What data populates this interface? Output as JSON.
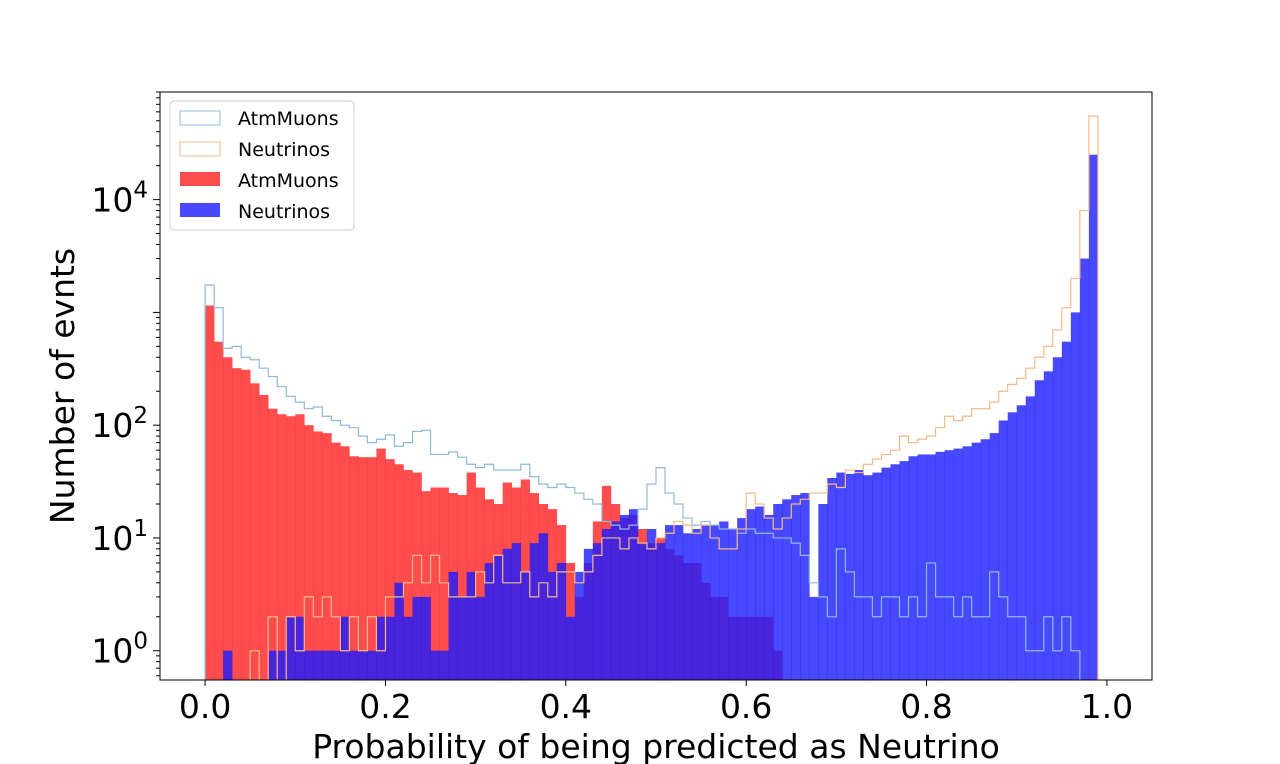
{
  "chart_data": {
    "type": "histogram",
    "xlabel": "Probability of being predicted as Neutrino",
    "ylabel": "Number of evnts",
    "xlim": [
      -0.05,
      1.05
    ],
    "ylim": [
      0.55,
      90000
    ],
    "yscale": "log",
    "x_ticks": [
      "0.0",
      "0.2",
      "0.4",
      "0.6",
      "0.8",
      "1.0"
    ],
    "y_ticks": [
      {
        "base": "10",
        "exp": "0"
      },
      {
        "base": "10",
        "exp": "1"
      },
      {
        "base": "10",
        "exp": "2"
      },
      {
        "base": "10",
        "exp": "4"
      }
    ],
    "legend_position": "upper-left",
    "bins": 100,
    "bin_range": [
      0,
      1
    ],
    "series": [
      {
        "name": "AtmMuons",
        "style": "step",
        "color": "#8fb8d8",
        "values": [
          1750,
          1100,
          480,
          500,
          400,
          380,
          320,
          270,
          220,
          180,
          160,
          140,
          145,
          120,
          110,
          100,
          95,
          80,
          70,
          75,
          82,
          65,
          70,
          88,
          90,
          55,
          55,
          58,
          52,
          45,
          42,
          45,
          40,
          40,
          40,
          45,
          35,
          30,
          28,
          30,
          28,
          25,
          22,
          20,
          14,
          13,
          12,
          13,
          18,
          30,
          42,
          25,
          20,
          15,
          13,
          14,
          13,
          12,
          12,
          11,
          12,
          11,
          11,
          10,
          10,
          9,
          7,
          4,
          3,
          2,
          8,
          5,
          3,
          3,
          2,
          3,
          3,
          2,
          3,
          2,
          6,
          3,
          3,
          2,
          3,
          2,
          2,
          5,
          3,
          2,
          2,
          1,
          1,
          2,
          1,
          2,
          1,
          0,
          0,
          0
        ]
      },
      {
        "name": "Neutrinos",
        "style": "step",
        "color": "#f5b987",
        "values": [
          0,
          0,
          0,
          0,
          0,
          1,
          0,
          2,
          0,
          2,
          1,
          3,
          2,
          3,
          2,
          1,
          2,
          1,
          2,
          1,
          3,
          3,
          4,
          7,
          4,
          7,
          4,
          3,
          3,
          3,
          5,
          4,
          7,
          4,
          4,
          5,
          3,
          4,
          3,
          5,
          5,
          4,
          5,
          7,
          10,
          10,
          8,
          10,
          9,
          8,
          10,
          11,
          14,
          13,
          11,
          13,
          10,
          8,
          8,
          12,
          25,
          20,
          15,
          12,
          15,
          20,
          22,
          25,
          25,
          30,
          28,
          40,
          38,
          45,
          50,
          55,
          60,
          80,
          70,
          75,
          80,
          95,
          120,
          110,
          120,
          140,
          140,
          160,
          200,
          230,
          260,
          320,
          400,
          500,
          700,
          1100,
          2000,
          8000,
          55000,
          0
        ]
      },
      {
        "name": "AtmMuons",
        "style": "filled",
        "color": "#ff2020",
        "opacity": 0.8,
        "values": [
          1150,
          550,
          400,
          320,
          310,
          235,
          185,
          140,
          125,
          120,
          125,
          100,
          88,
          85,
          70,
          65,
          53,
          52,
          52,
          62,
          50,
          45,
          40,
          38,
          26,
          28,
          28,
          25,
          24,
          38,
          28,
          22,
          20,
          31,
          28,
          33,
          25,
          20,
          18,
          13,
          6,
          3,
          6,
          14,
          29,
          20,
          15,
          16,
          12,
          9,
          10,
          8,
          7,
          6,
          6,
          4,
          3,
          3,
          2,
          2,
          2,
          2,
          2,
          1,
          0,
          0,
          0,
          0,
          0,
          0,
          0,
          0,
          0,
          0,
          0,
          0,
          0,
          0,
          0,
          0,
          0,
          0,
          0,
          0,
          0,
          0,
          0,
          0,
          0,
          0,
          0,
          0,
          0,
          0,
          0,
          0,
          0,
          0,
          0,
          0
        ]
      },
      {
        "name": "Neutrinos",
        "style": "filled",
        "color": "#1a1aff",
        "opacity": 0.8,
        "values": [
          0,
          0,
          1,
          0,
          0,
          0,
          0,
          1,
          1,
          2,
          2,
          1,
          1,
          1,
          1,
          2,
          1,
          1,
          1,
          2,
          2,
          4,
          2,
          3,
          3,
          1,
          1,
          5,
          3,
          5,
          3,
          6,
          7,
          8,
          9,
          5,
          9,
          11,
          5,
          6,
          2,
          5,
          8,
          9,
          12,
          14,
          16,
          18,
          9,
          12,
          9,
          13,
          13,
          11,
          12,
          13,
          13,
          14,
          12,
          15,
          18,
          19,
          16,
          20,
          22,
          24,
          25,
          3,
          20,
          34,
          38,
          37,
          40,
          36,
          38,
          42,
          45,
          48,
          53,
          55,
          55,
          58,
          60,
          62,
          65,
          70,
          75,
          85,
          110,
          130,
          150,
          180,
          250,
          300,
          400,
          550,
          1000,
          3000,
          25000,
          0
        ]
      }
    ]
  }
}
